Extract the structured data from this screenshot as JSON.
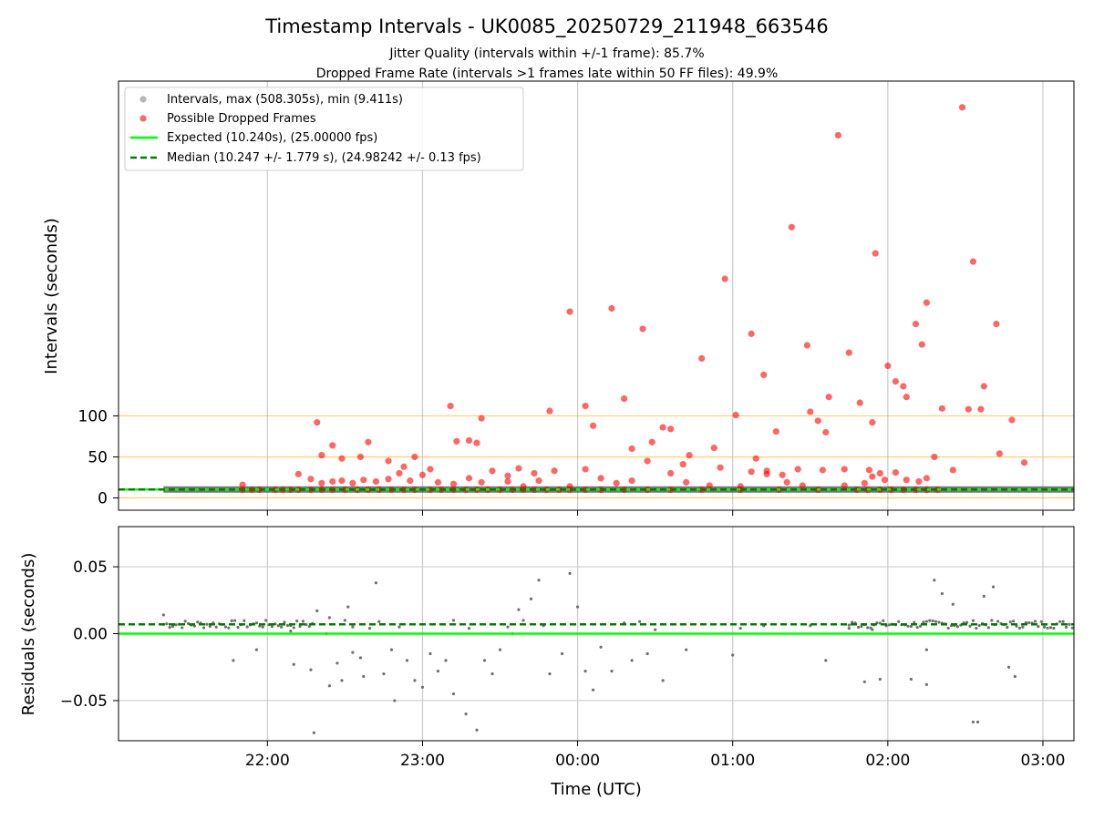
{
  "figure": {
    "title": "Timestamp Intervals - UK0085_20250729_211948_663546",
    "subtitle_1": "Jitter Quality (intervals within +/-1 frame): 85.7%",
    "subtitle_2": "Dropped Frame Rate (intervals >1 frames late within 50 FF files): 49.9%",
    "xlabel": "Time (UTC)"
  },
  "chart_data": [
    {
      "type": "scatter",
      "title": "Timestamp Intervals - UK0085_20250729_211948_663546",
      "ylabel": "Intervals (seconds)",
      "xlabel": "",
      "x_unit": "hours since 22:00 UTC",
      "xlim": [
        -0.96,
        5.2
      ],
      "ylim": [
        -15,
        508
      ],
      "yticks": [
        0,
        50,
        100
      ],
      "xticks": [
        0,
        1,
        2,
        3,
        4,
        5
      ],
      "xtick_labels": [
        "22:00",
        "23:00",
        "00:00",
        "01:00",
        "02:00",
        "03:00"
      ],
      "reference_lines": [
        0,
        50,
        100
      ],
      "grid": "vertical",
      "legend_position": "upper-left",
      "series": [
        {
          "name": "Intervals, max (508.305s), min (9.411s)",
          "kind": "band",
          "color": "#555555",
          "x_start": -0.67,
          "x_end": 5.2,
          "y": 10.24
        },
        {
          "name": "Possible Dropped Frames",
          "kind": "points",
          "color": "#ff0000",
          "points": [
            [
              -0.16,
              10
            ],
            [
              -0.1,
              10
            ],
            [
              -0.05,
              10
            ],
            [
              0.05,
              10
            ],
            [
              0.1,
              10
            ],
            [
              0.15,
              10
            ],
            [
              0.2,
              10
            ],
            [
              0.28,
              10
            ],
            [
              0.35,
              10
            ],
            [
              0.42,
              10
            ],
            [
              0.5,
              10
            ],
            [
              0.58,
              10
            ],
            [
              0.65,
              10
            ],
            [
              0.72,
              10
            ],
            [
              0.8,
              10
            ],
            [
              0.88,
              10
            ],
            [
              0.95,
              10
            ],
            [
              1.05,
              10
            ],
            [
              1.12,
              10
            ],
            [
              1.2,
              10
            ],
            [
              1.28,
              10
            ],
            [
              1.35,
              10
            ],
            [
              1.42,
              10
            ],
            [
              1.5,
              10
            ],
            [
              1.58,
              10
            ],
            [
              1.65,
              10
            ],
            [
              1.72,
              10
            ],
            [
              1.8,
              10
            ],
            [
              1.88,
              10
            ],
            [
              1.95,
              10
            ],
            [
              2.05,
              10
            ],
            [
              2.15,
              10
            ],
            [
              2.3,
              10
            ],
            [
              2.45,
              10
            ],
            [
              2.6,
              10
            ],
            [
              2.8,
              10
            ],
            [
              3.05,
              10
            ],
            [
              3.3,
              10
            ],
            [
              3.55,
              10
            ],
            [
              3.8,
              10
            ],
            [
              3.87,
              10
            ],
            [
              3.95,
              10
            ],
            [
              4.02,
              10
            ],
            [
              4.1,
              10
            ],
            [
              4.18,
              10
            ],
            [
              4.25,
              10
            ],
            [
              4.32,
              10
            ],
            [
              -0.16,
              16
            ],
            [
              0.2,
              29
            ],
            [
              0.28,
              23
            ],
            [
              0.35,
              18
            ],
            [
              0.42,
              20
            ],
            [
              0.48,
              21
            ],
            [
              0.55,
              18
            ],
            [
              0.62,
              22
            ],
            [
              0.7,
              20
            ],
            [
              0.78,
              23
            ],
            [
              0.85,
              30
            ],
            [
              0.92,
              21
            ],
            [
              1.0,
              28
            ],
            [
              1.1,
              19
            ],
            [
              1.2,
              17
            ],
            [
              1.3,
              24
            ],
            [
              1.38,
              19
            ],
            [
              1.45,
              33
            ],
            [
              1.55,
              20
            ],
            [
              1.65,
              14
            ],
            [
              1.75,
              21
            ],
            [
              1.85,
              33
            ],
            [
              1.95,
              14
            ],
            [
              2.05,
              35
            ],
            [
              2.15,
              24
            ],
            [
              2.25,
              18
            ],
            [
              2.35,
              21
            ],
            [
              2.45,
              45
            ],
            [
              2.6,
              30
            ],
            [
              2.7,
              19
            ],
            [
              2.85,
              15
            ],
            [
              2.92,
              37
            ],
            [
              3.05,
              14
            ],
            [
              3.12,
              32
            ],
            [
              3.22,
              29
            ],
            [
              3.35,
              19
            ],
            [
              3.45,
              15
            ],
            [
              3.58,
              34
            ],
            [
              3.72,
              15
            ],
            [
              3.85,
              18
            ],
            [
              3.9,
              26
            ],
            [
              3.98,
              22
            ],
            [
              4.05,
              31
            ],
            [
              4.12,
              22
            ],
            [
              4.25,
              24
            ],
            [
              0.32,
              92
            ],
            [
              0.35,
              52
            ],
            [
              0.42,
              64
            ],
            [
              0.48,
              48
            ],
            [
              0.6,
              50
            ],
            [
              0.65,
              68
            ],
            [
              0.78,
              45
            ],
            [
              0.88,
              38
            ],
            [
              0.95,
              50
            ],
            [
              1.05,
              35
            ],
            [
              1.18,
              112
            ],
            [
              1.22,
              69
            ],
            [
              1.3,
              70
            ],
            [
              1.35,
              67
            ],
            [
              1.38,
              97
            ],
            [
              1.55,
              27
            ],
            [
              1.62,
              36
            ],
            [
              1.72,
              30
            ],
            [
              1.82,
              106
            ],
            [
              1.95,
              227
            ],
            [
              2.05,
              112
            ],
            [
              2.1,
              88
            ],
            [
              2.22,
              231
            ],
            [
              2.3,
              121
            ],
            [
              2.35,
              60
            ],
            [
              2.42,
              206
            ],
            [
              2.48,
              68
            ],
            [
              2.55,
              86
            ],
            [
              2.6,
              84
            ],
            [
              2.68,
              41
            ],
            [
              2.72,
              52
            ],
            [
              2.8,
              170
            ],
            [
              2.88,
              61
            ],
            [
              2.95,
              267
            ],
            [
              3.02,
              101
            ],
            [
              3.12,
              200
            ],
            [
              3.2,
              150
            ],
            [
              3.28,
              81
            ],
            [
              3.38,
              330
            ],
            [
              3.48,
              186
            ],
            [
              3.55,
              94
            ],
            [
              3.62,
              123
            ],
            [
              3.68,
              442
            ],
            [
              3.75,
              177
            ],
            [
              3.82,
              116
            ],
            [
              3.9,
              92
            ],
            [
              4.0,
              161
            ],
            [
              4.05,
              142
            ],
            [
              4.12,
              123
            ],
            [
              4.18,
              212
            ],
            [
              4.25,
              238
            ],
            [
              4.35,
              109
            ],
            [
              4.42,
              34
            ],
            [
              4.48,
              476
            ],
            [
              3.92,
              298
            ],
            [
              4.1,
              136
            ],
            [
              4.55,
              288
            ],
            [
              4.62,
              136
            ],
            [
              4.7,
              212
            ],
            [
              4.72,
              54
            ],
            [
              4.8,
              95
            ],
            [
              4.88,
              43
            ],
            [
              4.6,
              108
            ],
            [
              4.52,
              108
            ],
            [
              4.3,
              50
            ],
            [
              4.22,
              187
            ],
            [
              4.2,
              20
            ],
            [
              3.95,
              30
            ],
            [
              3.88,
              34
            ],
            [
              3.72,
              35
            ],
            [
              3.6,
              80
            ],
            [
              3.5,
              105
            ],
            [
              3.42,
              35
            ],
            [
              3.32,
              28
            ],
            [
              3.22,
              33
            ],
            [
              3.15,
              48
            ]
          ]
        },
        {
          "name": "Expected (10.240s), (25.00000 fps)",
          "kind": "line",
          "color": "#00ff00",
          "style": "solid",
          "y": 10.24
        },
        {
          "name": "Median (10.247 +/- 1.779 s), (24.98242 +/- 0.13 fps)",
          "kind": "line",
          "color": "#007a00",
          "style": "dashed",
          "y": 10.247
        }
      ]
    },
    {
      "type": "scatter",
      "title": "",
      "ylabel": "Residuals (seconds)",
      "xlabel": "Time (UTC)",
      "x_unit": "hours since 22:00 UTC",
      "xlim": [
        -0.96,
        5.2
      ],
      "ylim": [
        -0.08,
        0.08
      ],
      "yticks": [
        -0.05,
        0.0,
        0.05
      ],
      "ytick_labels": [
        "−0.05",
        "0.00",
        "0.05"
      ],
      "xticks": [
        0,
        1,
        2,
        3,
        4,
        5
      ],
      "xtick_labels": [
        "22:00",
        "23:00",
        "00:00",
        "01:00",
        "02:00",
        "03:00"
      ],
      "grid": "both",
      "series": [
        {
          "name": "Residuals",
          "kind": "points",
          "color": "#707070",
          "cluster_y": 0.007,
          "cluster_ranges": [
            [
              -0.67,
              0.3
            ],
            [
              3.75,
              5.2
            ]
          ],
          "points": [
            [
              -0.67,
              0.014
            ],
            [
              -0.22,
              -0.02
            ],
            [
              -0.07,
              -0.012
            ],
            [
              0.15,
              0.002
            ],
            [
              0.17,
              -0.023
            ],
            [
              0.28,
              -0.027
            ],
            [
              0.3,
              -0.074
            ],
            [
              0.32,
              0.017
            ],
            [
              0.38,
              0.0
            ],
            [
              0.4,
              -0.039
            ],
            [
              0.45,
              -0.022
            ],
            [
              0.48,
              -0.035
            ],
            [
              0.52,
              0.02
            ],
            [
              0.55,
              -0.014
            ],
            [
              0.6,
              -0.018
            ],
            [
              0.62,
              -0.032
            ],
            [
              0.7,
              0.038
            ],
            [
              0.75,
              -0.03
            ],
            [
              0.8,
              -0.012
            ],
            [
              0.82,
              -0.05
            ],
            [
              0.9,
              -0.02
            ],
            [
              0.95,
              -0.035
            ],
            [
              1.0,
              -0.04
            ],
            [
              1.05,
              -0.015
            ],
            [
              1.1,
              -0.028
            ],
            [
              1.15,
              -0.02
            ],
            [
              1.2,
              -0.045
            ],
            [
              1.28,
              -0.06
            ],
            [
              1.35,
              -0.072
            ],
            [
              1.4,
              -0.02
            ],
            [
              1.45,
              -0.03
            ],
            [
              1.5,
              -0.012
            ],
            [
              1.58,
              0.0
            ],
            [
              1.62,
              0.018
            ],
            [
              1.7,
              0.026
            ],
            [
              1.75,
              0.04
            ],
            [
              1.82,
              -0.03
            ],
            [
              1.9,
              -0.015
            ],
            [
              1.95,
              0.045
            ],
            [
              2.0,
              0.02
            ],
            [
              2.05,
              -0.028
            ],
            [
              2.1,
              -0.042
            ],
            [
              2.15,
              -0.01
            ],
            [
              2.22,
              -0.028
            ],
            [
              2.3,
              0.008
            ],
            [
              2.35,
              -0.02
            ],
            [
              2.45,
              -0.015
            ],
            [
              2.55,
              -0.035
            ],
            [
              2.7,
              -0.012
            ],
            [
              3.0,
              -0.016
            ],
            [
              3.6,
              -0.02
            ],
            [
              3.85,
              -0.036
            ],
            [
              3.95,
              -0.034
            ],
            [
              4.15,
              -0.034
            ],
            [
              4.25,
              -0.012
            ],
            [
              4.3,
              0.04
            ],
            [
              4.35,
              0.03
            ],
            [
              4.42,
              0.022
            ],
            [
              4.55,
              -0.066
            ],
            [
              4.58,
              -0.066
            ],
            [
              4.62,
              0.028
            ],
            [
              4.68,
              0.035
            ],
            [
              4.78,
              -0.025
            ],
            [
              4.82,
              -0.032
            ],
            [
              4.25,
              -0.038
            ],
            [
              0.4,
              0.012
            ],
            [
              0.5,
              0.01
            ],
            [
              0.55,
              0.005
            ],
            [
              0.66,
              0.004
            ],
            [
              0.72,
              0.009
            ],
            [
              0.85,
              0.005
            ],
            [
              1.2,
              0.01
            ],
            [
              1.3,
              0.004
            ],
            [
              1.55,
              0.005
            ],
            [
              1.65,
              0.01
            ],
            [
              1.78,
              0.006
            ],
            [
              2.4,
              0.009
            ],
            [
              2.5,
              0.003
            ],
            [
              3.05,
              0.004
            ],
            [
              3.2,
              0.006
            ],
            [
              3.5,
              0.006
            ],
            [
              3.75,
              0.004
            ],
            [
              3.9,
              0.003
            ]
          ]
        },
        {
          "name": "Expected",
          "kind": "line",
          "color": "#00ff00",
          "style": "solid",
          "y": 0.0
        },
        {
          "name": "Median",
          "kind": "line",
          "color": "#007a00",
          "style": "dashed",
          "y": 0.007
        }
      ]
    }
  ]
}
